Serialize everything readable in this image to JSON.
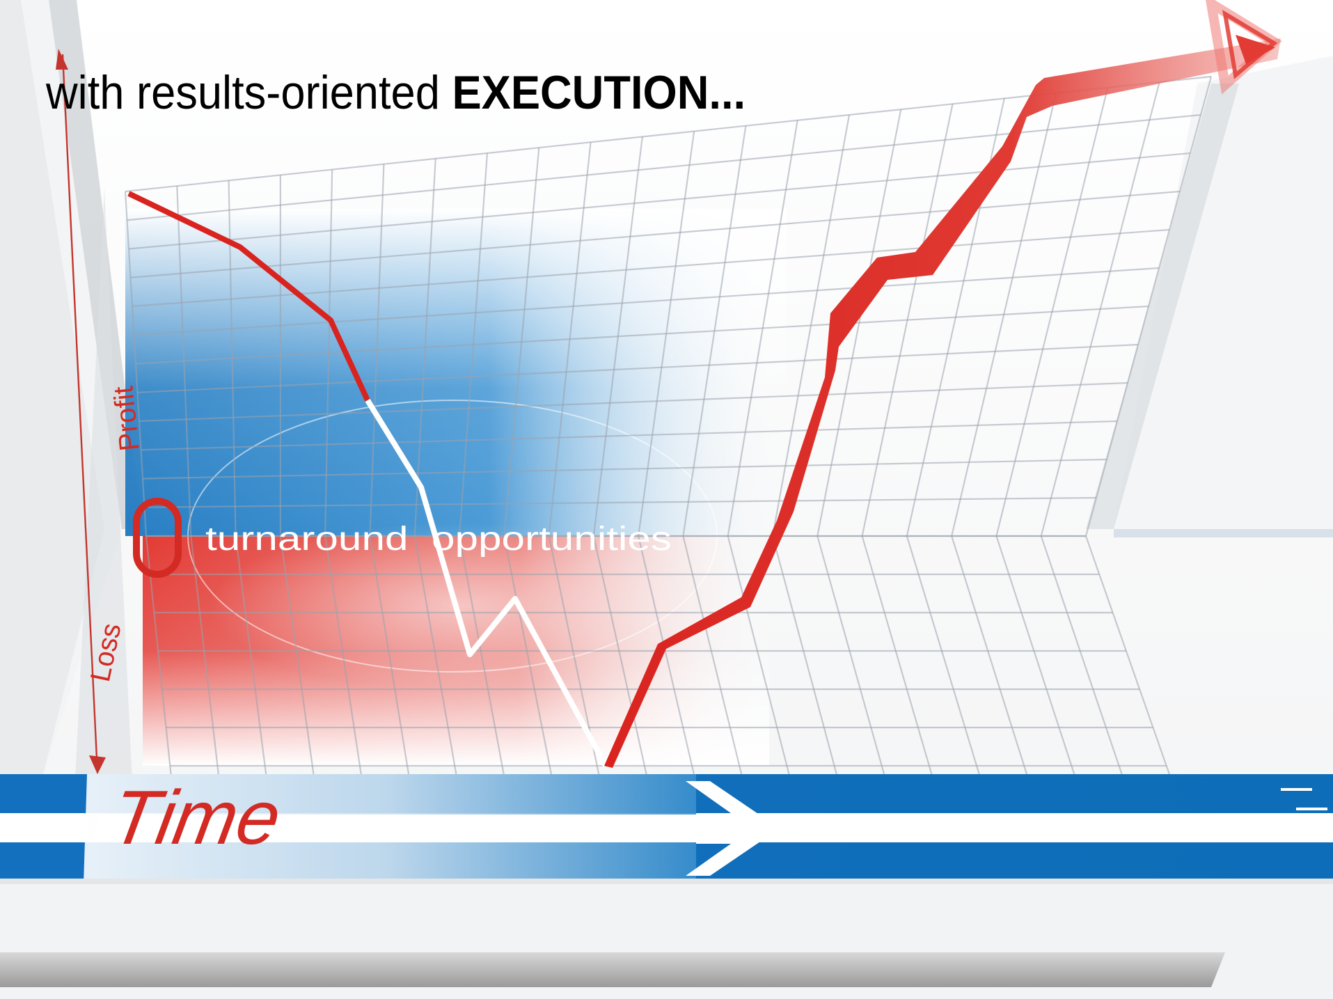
{
  "headline": {
    "lead": "with results-oriented ",
    "emphasis": "EXECUTION..."
  },
  "chart": {
    "y_axis_top_label": "Profit",
    "y_axis_bottom_label": "Loss",
    "zero_label": "0",
    "x_axis_label": "Time",
    "band_label": "turnaround  opportunities"
  },
  "colors": {
    "profit_blue": "#1f7fc6",
    "loss_red": "#e03a33",
    "trend_red": "#d9231f",
    "axis_red": "#c4352d",
    "time_bar_blue": "#1270be",
    "grid_line": "#9aa3ad"
  }
}
